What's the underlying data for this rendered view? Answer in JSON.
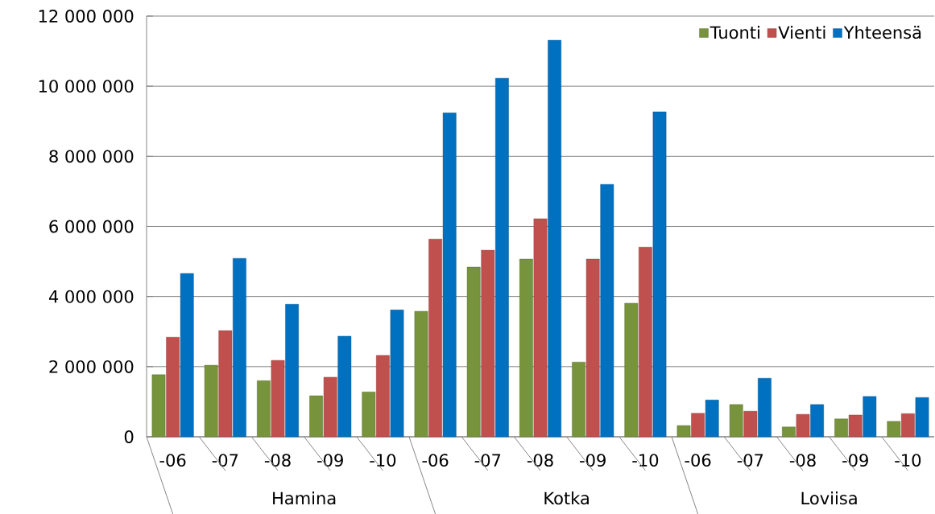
{
  "chart_data": {
    "type": "bar",
    "categories": [
      "-06",
      "-07",
      "-08",
      "-09",
      "-10",
      "-06",
      "-07",
      "-08",
      "-09",
      "-10",
      "-06",
      "-07",
      "-08",
      "-09",
      "-10"
    ],
    "annotations": [
      "Hamina",
      "Kotka",
      "Loviisa"
    ],
    "series": [
      {
        "name": "Tuonti",
        "color": "#77933c",
        "values": [
          1770000,
          2040000,
          1600000,
          1170000,
          1280000,
          3580000,
          4840000,
          5070000,
          2130000,
          3810000,
          320000,
          920000,
          280000,
          510000,
          440000
        ]
      },
      {
        "name": "Vienti",
        "color": "#c0504d",
        "values": [
          2840000,
          3030000,
          2180000,
          1700000,
          2320000,
          5640000,
          5320000,
          6220000,
          5070000,
          5410000,
          670000,
          730000,
          640000,
          620000,
          660000
        ]
      },
      {
        "name": "Yhteensä",
        "color": "#0070c0",
        "values": [
          4660000,
          5090000,
          3780000,
          2870000,
          3620000,
          9240000,
          10230000,
          11310000,
          7200000,
          9270000,
          1050000,
          1670000,
          920000,
          1150000,
          1120000
        ]
      }
    ],
    "ylim": [
      0,
      12000000
    ],
    "yticks": [
      {
        "value": 0,
        "label": "0"
      },
      {
        "value": 2000000,
        "label": "2 000 000"
      },
      {
        "value": 4000000,
        "label": "4 000 000"
      },
      {
        "value": 6000000,
        "label": "6 000 000"
      },
      {
        "value": 8000000,
        "label": "8 000 000"
      },
      {
        "value": 10000000,
        "label": "10 000 000"
      },
      {
        "value": 12000000,
        "label": "12 000 000"
      }
    ],
    "grid": "y",
    "legend": "top right"
  }
}
